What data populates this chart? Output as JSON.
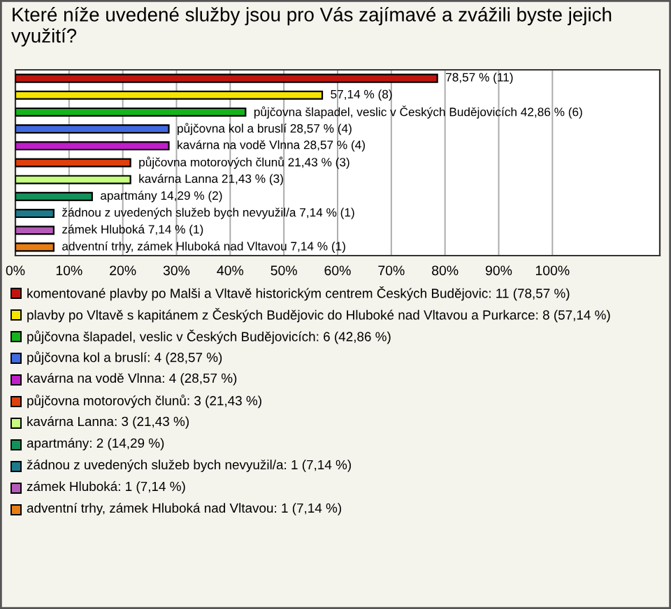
{
  "chart_data": {
    "type": "bar",
    "orientation": "horizontal",
    "title": "Které níže uvedené služby jsou pro Vás zajímavé a zvážili byste jejich využití?",
    "categories": [
      null,
      null,
      null,
      null,
      null,
      null,
      null,
      null,
      null,
      null,
      null
    ],
    "values": [
      78.57,
      57.14,
      42.86,
      28.57,
      28.57,
      21.43,
      21.43,
      14.29,
      7.14,
      7.14,
      7.14
    ],
    "colors": [
      "#c0150f",
      "#f5e400",
      "#13b51a",
      "#4169e1",
      "#c11ec9",
      "#e0400e",
      "#c6ff80",
      "#13915a",
      "#1d7a8c",
      "#b65ab9",
      "#e67e14"
    ],
    "value_labels": [
      "78,57 % (11)",
      "57,14 % (8)",
      "půjčovna šlapadel, veslic v Českých Budějovicích 42,86 % (6)",
      "půjčovna kol a bruslí 28,57 % (4)",
      "kavárna na vodě Vlnna 28,57 % (4)",
      "půjčovna motorových člunů 21,43 % (3)",
      "kavárna Lanna 21,43 % (3)",
      "apartmány 14,29 % (2)",
      "žádnou z uvedených služeb bych nevyužil/a 7,14 % (1)",
      "zámek Hluboká 7,14 % (1)",
      "adventní trhy, zámek Hluboká nad Vltavou 7,14 % (1)"
    ],
    "xlim": [
      0,
      120
    ],
    "xticks": [
      {
        "value": 0,
        "label": "0%"
      },
      {
        "value": 10,
        "label": "10%"
      },
      {
        "value": 20,
        "label": "20%"
      },
      {
        "value": 30,
        "label": "30%"
      },
      {
        "value": 40,
        "label": "40%"
      },
      {
        "value": 50,
        "label": "50%"
      },
      {
        "value": 60,
        "label": "60%"
      },
      {
        "value": 70,
        "label": "70%"
      },
      {
        "value": 80,
        "label": "80%"
      },
      {
        "value": 90,
        "label": "90%"
      },
      {
        "value": 100,
        "label": "100%"
      }
    ],
    "grid": "x",
    "annotations": [
      "komentované plavby po Malši a Vltavě historickým centrem Českých Budějovic: 11 (78,57 %)",
      "plavby po Vltavě s kapitánem z Českých Budějovic do Hluboké nad Vltavou a Purkarce: 8 (57,14 %)",
      "půjčovna šlapadel, veslic v Českých Budějovicích: 6 (42,86 %)",
      "půjčovna kol a bruslí: 4 (28,57 %)",
      "kavárna na vodě Vlnna: 4 (28,57 %)",
      "půjčovna motorových člunů: 3 (21,43 %)",
      "kavárna Lanna: 3 (21,43 %)",
      "apartmány: 2 (14,29 %)",
      "žádnou z uvedených služeb bych nevyužil/a: 1 (7,14 %)",
      "zámek Hluboká: 1 (7,14 %)",
      "adventní trhy, zámek Hluboká nad Vltavou: 1 (7,14 %)"
    ]
  }
}
